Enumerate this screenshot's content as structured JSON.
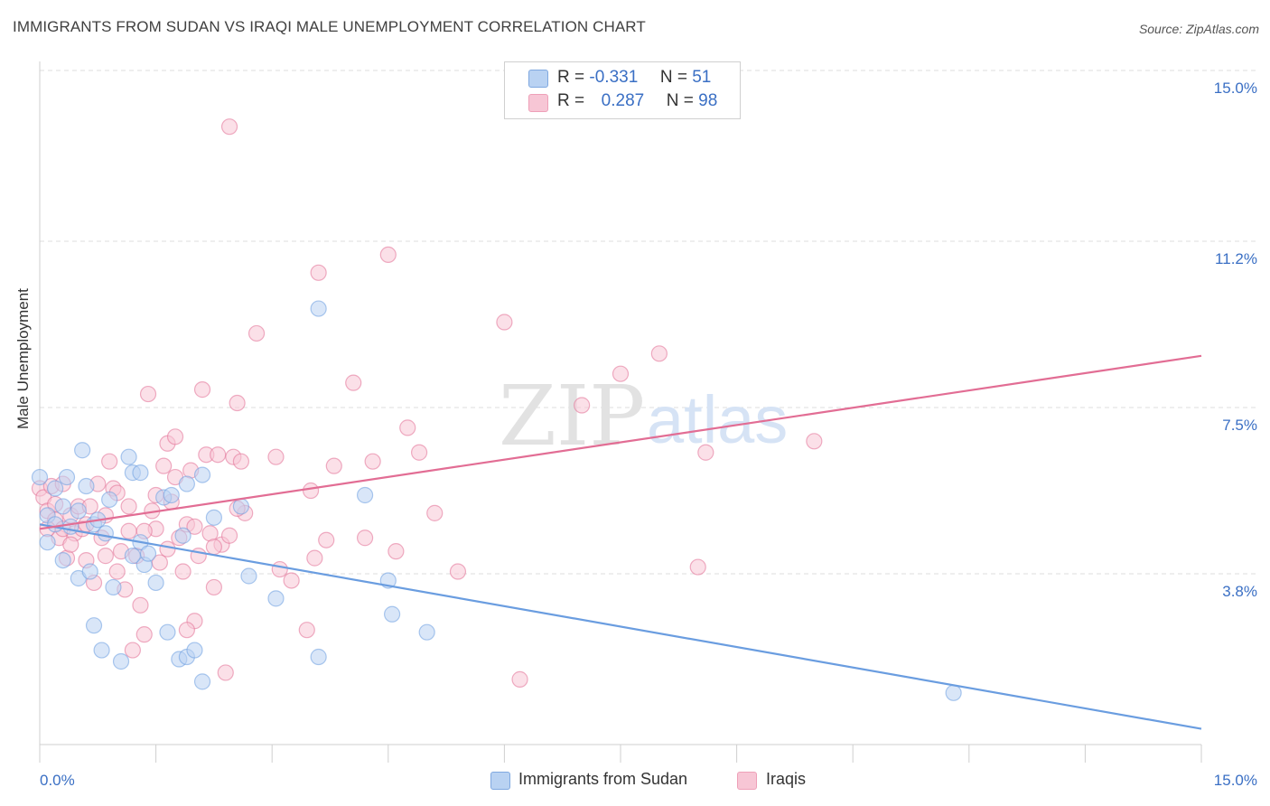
{
  "header": {
    "title": "IMMIGRANTS FROM SUDAN VS IRAQI MALE UNEMPLOYMENT CORRELATION CHART",
    "source": "Source: ZipAtlas.com"
  },
  "legend": {
    "r_label": "R =",
    "n_label": "N =",
    "rows": [
      {
        "r": "-0.331",
        "n": "51",
        "color": "#a9c8f0"
      },
      {
        "r": "0.287",
        "n": "98",
        "color": "#f7b8cb"
      }
    ]
  },
  "bottom_legend": {
    "series1": "Immigrants from Sudan",
    "series2": "Iraqis"
  },
  "watermark": {
    "part1": "ZIP",
    "part2": "atlas"
  },
  "chart_data": {
    "type": "scatter",
    "title": "IMMIGRANTS FROM SUDAN VS IRAQI MALE UNEMPLOYMENT CORRELATION CHART",
    "xlabel": "",
    "ylabel": "Male Unemployment",
    "xlim": [
      0,
      15
    ],
    "ylim": [
      0,
      15
    ],
    "x_tick_labels": [
      "0.0%",
      "15.0%"
    ],
    "y_ticks": [
      3.8,
      7.5,
      11.2,
      15.0
    ],
    "y_tick_labels": [
      "3.8%",
      "7.5%",
      "11.2%",
      "15.0%"
    ],
    "grid": true,
    "legend_position": "top-center",
    "series": [
      {
        "name": "Immigrants from Sudan",
        "color": "#6a9de0",
        "fill": "#b9d2f2",
        "R": -0.331,
        "N": 51,
        "trend": {
          "x": [
            0,
            15
          ],
          "y": [
            4.9,
            0.35
          ]
        },
        "points": [
          [
            0.0,
            5.95
          ],
          [
            0.1,
            4.5
          ],
          [
            0.1,
            5.1
          ],
          [
            0.2,
            5.7
          ],
          [
            0.2,
            4.9
          ],
          [
            0.3,
            4.1
          ],
          [
            0.3,
            5.3
          ],
          [
            0.35,
            5.95
          ],
          [
            0.4,
            4.85
          ],
          [
            0.5,
            5.2
          ],
          [
            0.5,
            3.7
          ],
          [
            0.55,
            6.55
          ],
          [
            0.6,
            5.75
          ],
          [
            0.65,
            3.85
          ],
          [
            0.7,
            4.9
          ],
          [
            0.7,
            2.65
          ],
          [
            0.75,
            5.0
          ],
          [
            0.8,
            2.1
          ],
          [
            0.85,
            4.7
          ],
          [
            0.9,
            5.45
          ],
          [
            1.05,
            1.85
          ],
          [
            1.15,
            6.4
          ],
          [
            1.2,
            6.05
          ],
          [
            1.3,
            4.5
          ],
          [
            1.3,
            6.05
          ],
          [
            1.35,
            4.0
          ],
          [
            1.4,
            4.25
          ],
          [
            1.5,
            3.6
          ],
          [
            1.6,
            5.5
          ],
          [
            1.65,
            2.5
          ],
          [
            1.7,
            5.55
          ],
          [
            1.8,
            1.9
          ],
          [
            1.85,
            4.65
          ],
          [
            1.9,
            5.8
          ],
          [
            1.9,
            1.95
          ],
          [
            2.0,
            2.1
          ],
          [
            2.1,
            1.4
          ],
          [
            2.1,
            6.0
          ],
          [
            2.25,
            5.05
          ],
          [
            2.6,
            5.3
          ],
          [
            2.7,
            3.75
          ],
          [
            3.05,
            3.25
          ],
          [
            3.6,
            9.7
          ],
          [
            3.6,
            1.95
          ],
          [
            4.2,
            5.55
          ],
          [
            4.5,
            3.65
          ],
          [
            4.55,
            2.9
          ],
          [
            5.0,
            2.5
          ],
          [
            11.8,
            1.15
          ],
          [
            1.2,
            4.2
          ],
          [
            0.95,
            3.5
          ]
        ]
      },
      {
        "name": "Iraqis",
        "color": "#e26d94",
        "fill": "#f7c6d5",
        "R": 0.287,
        "N": 98,
        "trend": {
          "x": [
            0,
            15
          ],
          "y": [
            4.8,
            8.65
          ]
        },
        "points": [
          [
            0.0,
            5.7
          ],
          [
            0.05,
            5.5
          ],
          [
            0.1,
            5.2
          ],
          [
            0.15,
            5.75
          ],
          [
            0.2,
            5.0
          ],
          [
            0.25,
            4.6
          ],
          [
            0.3,
            4.8
          ],
          [
            0.35,
            4.15
          ],
          [
            0.4,
            5.1
          ],
          [
            0.45,
            4.7
          ],
          [
            0.5,
            5.3
          ],
          [
            0.55,
            4.8
          ],
          [
            0.6,
            4.9
          ],
          [
            0.65,
            5.3
          ],
          [
            0.7,
            3.6
          ],
          [
            0.75,
            5.8
          ],
          [
            0.8,
            4.6
          ],
          [
            0.85,
            4.2
          ],
          [
            0.9,
            6.3
          ],
          [
            0.95,
            5.7
          ],
          [
            1.0,
            3.85
          ],
          [
            1.05,
            4.3
          ],
          [
            1.1,
            3.45
          ],
          [
            1.15,
            4.75
          ],
          [
            1.2,
            2.1
          ],
          [
            1.25,
            4.2
          ],
          [
            1.3,
            3.1
          ],
          [
            1.35,
            2.45
          ],
          [
            1.4,
            7.8
          ],
          [
            1.45,
            5.2
          ],
          [
            1.5,
            4.8
          ],
          [
            1.55,
            4.05
          ],
          [
            1.6,
            6.2
          ],
          [
            1.65,
            6.7
          ],
          [
            1.7,
            5.4
          ],
          [
            1.75,
            6.85
          ],
          [
            1.8,
            4.6
          ],
          [
            1.85,
            3.85
          ],
          [
            1.9,
            4.9
          ],
          [
            1.95,
            6.1
          ],
          [
            2.0,
            2.75
          ],
          [
            2.05,
            4.2
          ],
          [
            2.1,
            7.9
          ],
          [
            2.15,
            6.45
          ],
          [
            2.2,
            4.7
          ],
          [
            2.25,
            3.5
          ],
          [
            2.3,
            6.45
          ],
          [
            2.35,
            4.45
          ],
          [
            2.4,
            1.6
          ],
          [
            2.45,
            4.65
          ],
          [
            2.5,
            6.4
          ],
          [
            2.55,
            7.6
          ],
          [
            2.6,
            6.3
          ],
          [
            2.65,
            5.15
          ],
          [
            2.8,
            9.15
          ],
          [
            3.05,
            6.4
          ],
          [
            3.25,
            3.65
          ],
          [
            3.45,
            2.55
          ],
          [
            3.5,
            5.65
          ],
          [
            3.55,
            4.15
          ],
          [
            3.6,
            10.5
          ],
          [
            3.7,
            4.55
          ],
          [
            3.8,
            6.2
          ],
          [
            4.05,
            8.05
          ],
          [
            4.2,
            4.6
          ],
          [
            4.3,
            6.3
          ],
          [
            4.5,
            10.9
          ],
          [
            4.6,
            4.3
          ],
          [
            4.75,
            7.05
          ],
          [
            4.9,
            6.5
          ],
          [
            5.1,
            5.15
          ],
          [
            5.4,
            3.85
          ],
          [
            6.0,
            9.4
          ],
          [
            6.2,
            1.45
          ],
          [
            7.0,
            7.55
          ],
          [
            7.5,
            8.25
          ],
          [
            8.0,
            8.7
          ],
          [
            8.5,
            3.95
          ],
          [
            8.6,
            6.5
          ],
          [
            10.0,
            6.75
          ],
          [
            2.45,
            13.75
          ],
          [
            1.0,
            5.6
          ],
          [
            0.2,
            5.35
          ],
          [
            0.4,
            4.45
          ],
          [
            1.5,
            5.55
          ],
          [
            2.0,
            4.85
          ],
          [
            1.15,
            5.3
          ],
          [
            1.75,
            5.95
          ],
          [
            0.6,
            4.1
          ],
          [
            1.9,
            2.55
          ],
          [
            3.1,
            3.9
          ],
          [
            2.55,
            5.25
          ],
          [
            1.35,
            4.75
          ],
          [
            0.85,
            5.1
          ],
          [
            1.65,
            4.35
          ],
          [
            2.25,
            4.4
          ],
          [
            0.1,
            4.8
          ],
          [
            0.3,
            5.8
          ]
        ]
      }
    ]
  }
}
